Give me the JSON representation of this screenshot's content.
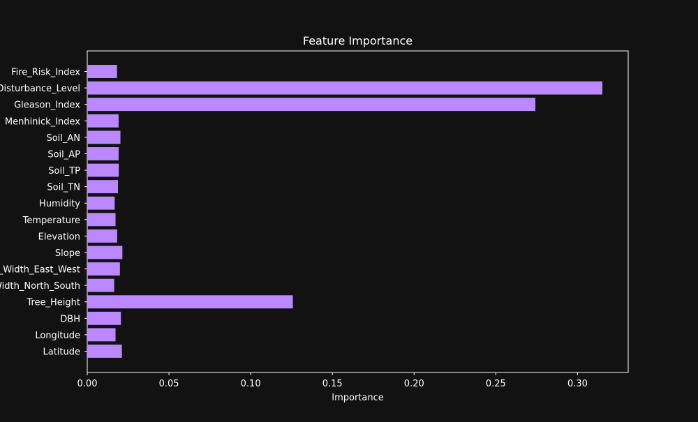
{
  "colors": {
    "background": "#121212",
    "bar": "#bb88ff",
    "axis": "#ffffff",
    "text": "#ffffff"
  },
  "chart_data": {
    "type": "bar",
    "orientation": "horizontal",
    "title": "Feature Importance",
    "xlabel": "Importance",
    "ylabel": "",
    "xlim": [
      0,
      0.331
    ],
    "xticks": [
      0.0,
      0.05,
      0.1,
      0.15,
      0.2,
      0.25,
      0.3
    ],
    "xtick_labels": [
      "0.00",
      "0.05",
      "0.10",
      "0.15",
      "0.20",
      "0.25",
      "0.30"
    ],
    "grid": false,
    "categories": [
      "Fire_Risk_Index",
      "Disturbance_Level",
      "Gleason_Index",
      "Menhinick_Index",
      "Soil_AN",
      "Soil_AP",
      "Soil_TP",
      "Soil_TN",
      "Humidity",
      "Temperature",
      "Elevation",
      "Slope",
      "Crown_Width_East_West",
      "Crown_Width_North_South",
      "Tree_Height",
      "DBH",
      "Longitude",
      "Latitude"
    ],
    "values": [
      0.0182,
      0.3152,
      0.2742,
      0.0192,
      0.0203,
      0.0192,
      0.0193,
      0.0188,
      0.0168,
      0.0173,
      0.0183,
      0.0215,
      0.02,
      0.0165,
      0.1258,
      0.0206,
      0.0173,
      0.0212
    ]
  }
}
